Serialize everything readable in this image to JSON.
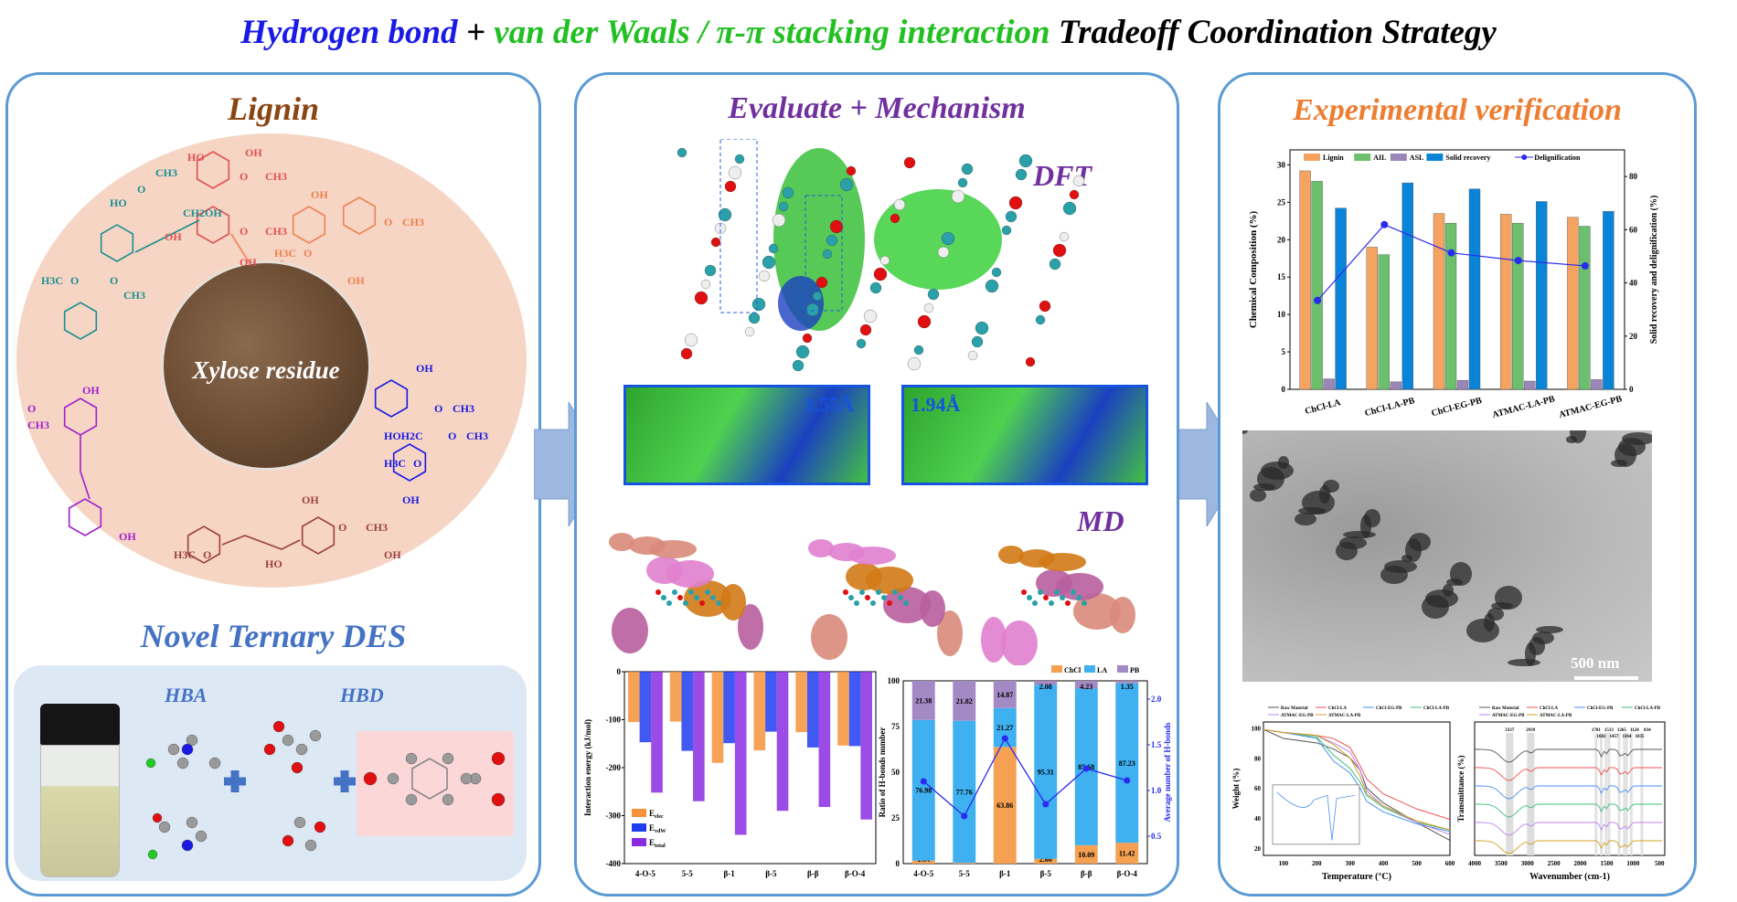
{
  "title": {
    "part1": "Hydrogen bond",
    "plus": " + ",
    "part2": "van der Waals / π-π stacking interaction",
    "part3": " Tradeoff Coordination Strategy",
    "colors": {
      "part1": "#1a1ae6",
      "part2": "#22c022",
      "part3": "#111111"
    }
  },
  "left_panel": {
    "title": "Lignin",
    "title_color": "#8b4513",
    "photo_label": "Xylose residue",
    "structure_labels": [
      "OH",
      "O",
      "CH3",
      "HO",
      "OH",
      "O",
      "CH3",
      "OH",
      "HO",
      "O",
      "CH3",
      "CH2OH",
      "H3C",
      "O",
      "O",
      "CH3",
      "OH",
      "OH",
      "H3C",
      "O",
      "O",
      "CH3",
      "OH",
      "O",
      "CH3",
      "HOH2C",
      "H3C",
      "O",
      "O",
      "CH3",
      "OH",
      "O",
      "CH3",
      "OH",
      "H3C",
      "O",
      "OH",
      "OH",
      "CH3",
      "O",
      "HO",
      "OH"
    ],
    "des_title": "Novel Ternary DES",
    "des_title_color": "#4472c4",
    "hba_label": "HBA",
    "hbd_label": "HBD"
  },
  "middle_panel": {
    "title": "Evaluate + Mechanism",
    "title_color": "#7030a0",
    "dft_label": "DFT",
    "md_label": "MD",
    "inset1_distance": "1.55Å",
    "inset2_distance": "1.94Å"
  },
  "right_panel": {
    "title": "Experimental verification",
    "title_color": "#ed7d31",
    "tem_scale_bar": "500 nm"
  },
  "chart_data": [
    {
      "id": "composition",
      "type": "bar",
      "categories": [
        "ChCl-LA",
        "ChCl-LA-PB",
        "ChCl-EG-PB",
        "ATMAC-LA-PB",
        "ATMAC-EG-PB"
      ],
      "series": [
        {
          "name": "Lignin",
          "axis": "left",
          "color": "#f4a460",
          "values": [
            29.2,
            19.0,
            23.5,
            23.4,
            23.0
          ]
        },
        {
          "name": "AIL",
          "axis": "left",
          "color": "#6cbf6c",
          "values": [
            27.8,
            18.0,
            22.2,
            22.2,
            21.8
          ]
        },
        {
          "name": "ASL",
          "axis": "left",
          "color": "#9b86b8",
          "values": [
            1.4,
            1.0,
            1.2,
            1.1,
            1.3
          ]
        },
        {
          "name": "Solid recovery",
          "axis": "right",
          "color": "#0a84d8",
          "values": [
            68.1,
            77.6,
            75.3,
            70.6,
            66.9
          ]
        },
        {
          "name": "Delignification",
          "axis": "right",
          "type": "line",
          "color": "#2a2af0",
          "values": [
            33.4,
            61.9,
            51.3,
            48.4,
            46.4
          ]
        }
      ],
      "ylabel": "Chemical Composition (%)",
      "y2label": "Solid recovery and delignification (%)",
      "ylim": [
        0,
        32
      ],
      "yticks": [
        0,
        5,
        10,
        15,
        20,
        25,
        30
      ],
      "y2lim": [
        0,
        90
      ],
      "y2ticks": [
        0,
        20,
        40,
        60,
        80
      ],
      "legend": "top"
    },
    {
      "id": "interaction",
      "type": "bar",
      "categories": [
        "4-O-5",
        "5-5",
        "β-1",
        "β-5",
        "β-β",
        "β-O-4"
      ],
      "series": [
        {
          "name": "Eelec",
          "color": "#f5923a",
          "values": [
            -105,
            -104,
            -190,
            -164,
            -126,
            -154
          ]
        },
        {
          "name": "EvdW",
          "color": "#1f3cf0",
          "values": [
            -147,
            -165,
            -149,
            -125,
            -158,
            -155
          ]
        },
        {
          "name": "Etotal",
          "color": "#8a2be2",
          "values": [
            -252,
            -270,
            -340,
            -290,
            -282,
            -308
          ]
        }
      ],
      "legend_labels": [
        [
          "E",
          "elec"
        ],
        [
          "E",
          "vdW"
        ],
        [
          "E",
          "total"
        ]
      ],
      "ylabel": "Interaction energy (kJ/mol)",
      "ylim": [
        -400,
        0
      ],
      "yticks": [
        0,
        -100,
        -200,
        -300,
        -400
      ],
      "legend": "bottom-left"
    },
    {
      "id": "hbond_ratio",
      "type": "bar",
      "stacked": true,
      "categories": [
        "4-O-5",
        "5-5",
        "β-1",
        "β-5",
        "β-β",
        "β-O-4"
      ],
      "series": [
        {
          "name": "ChCl",
          "color": "#f5a052",
          "values": [
            1.64,
            0.41,
            63.86,
            2.6,
            10.09,
            11.42
          ]
        },
        {
          "name": "LA",
          "color": "#3fb0f0",
          "values": [
            76.98,
            77.76,
            21.27,
            95.31,
            85.68,
            87.23
          ]
        },
        {
          "name": "PB",
          "color": "#a48ac4",
          "values": [
            21.38,
            21.82,
            14.87,
            2.08,
            4.23,
            1.35
          ]
        },
        {
          "name": "Average number of H-bonds",
          "axis": "right",
          "type": "line",
          "color": "#2a2af0",
          "values": [
            1.1,
            0.72,
            1.57,
            0.85,
            1.24,
            1.11
          ]
        }
      ],
      "ylabel": "Ratio of H-bonds number",
      "y2label": "Average number of H-bonds",
      "ylim": [
        0,
        100
      ],
      "yticks": [
        0,
        25,
        50,
        75,
        100
      ],
      "y2lim": [
        0.2,
        2.2
      ],
      "y2ticks": [
        0.5,
        1.0,
        1.5,
        2.0
      ],
      "legend": "top-right"
    },
    {
      "id": "tga",
      "type": "line",
      "x": [
        40,
        100,
        200,
        250,
        300,
        330,
        350,
        400,
        500,
        600
      ],
      "series": [
        {
          "name": "Raw Material",
          "color": "#555555",
          "values": [
            99,
            93,
            90,
            86,
            80,
            72,
            60,
            50,
            37,
            25
          ]
        },
        {
          "name": "ChCl-LA",
          "color": "#f05050",
          "values": [
            99,
            97,
            95,
            93,
            87,
            75,
            66,
            56,
            46,
            39
          ]
        },
        {
          "name": "ChCl-EG-PB",
          "color": "#4a90f0",
          "values": [
            99,
            97,
            93,
            78,
            70,
            60,
            51,
            44,
            36,
            31
          ]
        },
        {
          "name": "ChCl-LA-PB",
          "color": "#3cbf7c",
          "values": [
            99,
            97,
            94,
            82,
            73,
            64,
            55,
            47,
            37,
            32
          ]
        },
        {
          "name": "ATMAC-EG-PB",
          "color": "#c080f0",
          "values": [
            99,
            97,
            95,
            90,
            84,
            72,
            58,
            48,
            37,
            29
          ]
        },
        {
          "name": "ATMAC-LA-PB",
          "color": "#d4a020",
          "values": [
            99,
            97,
            95,
            89,
            80,
            68,
            56,
            48,
            38,
            32
          ]
        }
      ],
      "xlabel": "Temperature (°C)",
      "ylabel": "Weight (%)",
      "xlim": [
        40,
        600
      ],
      "xticks": [
        100,
        200,
        300,
        400,
        500,
        600
      ],
      "ylim": [
        15,
        104
      ],
      "yticks": [
        20,
        40,
        60,
        80,
        100
      ],
      "legend": "top"
    },
    {
      "id": "ftir",
      "type": "line",
      "series": [
        {
          "name": "Raw Material",
          "color": "#555555"
        },
        {
          "name": "ChCl-LA",
          "color": "#f05050"
        },
        {
          "name": "ChCl-EG-PB",
          "color": "#4a90f0"
        },
        {
          "name": "ChCl-LA-PB",
          "color": "#3cbf7c"
        },
        {
          "name": "ATMAC-EG-PB",
          "color": "#c080f0"
        },
        {
          "name": "ATMAC-LA-PB",
          "color": "#d4a020"
        }
      ],
      "peak_labels": [
        "3337",
        "2939",
        "1701",
        "1602",
        "1513",
        "1457",
        "1265",
        "1164",
        "1124",
        "1035",
        "834"
      ],
      "xlabel": "Wavenumber (cm-1)",
      "ylabel": "Transmittance (%)",
      "xlim": [
        4000,
        400
      ],
      "xticks": [
        4000,
        3500,
        3000,
        2500,
        2000,
        1500,
        1000,
        500
      ],
      "legend": "top"
    }
  ]
}
